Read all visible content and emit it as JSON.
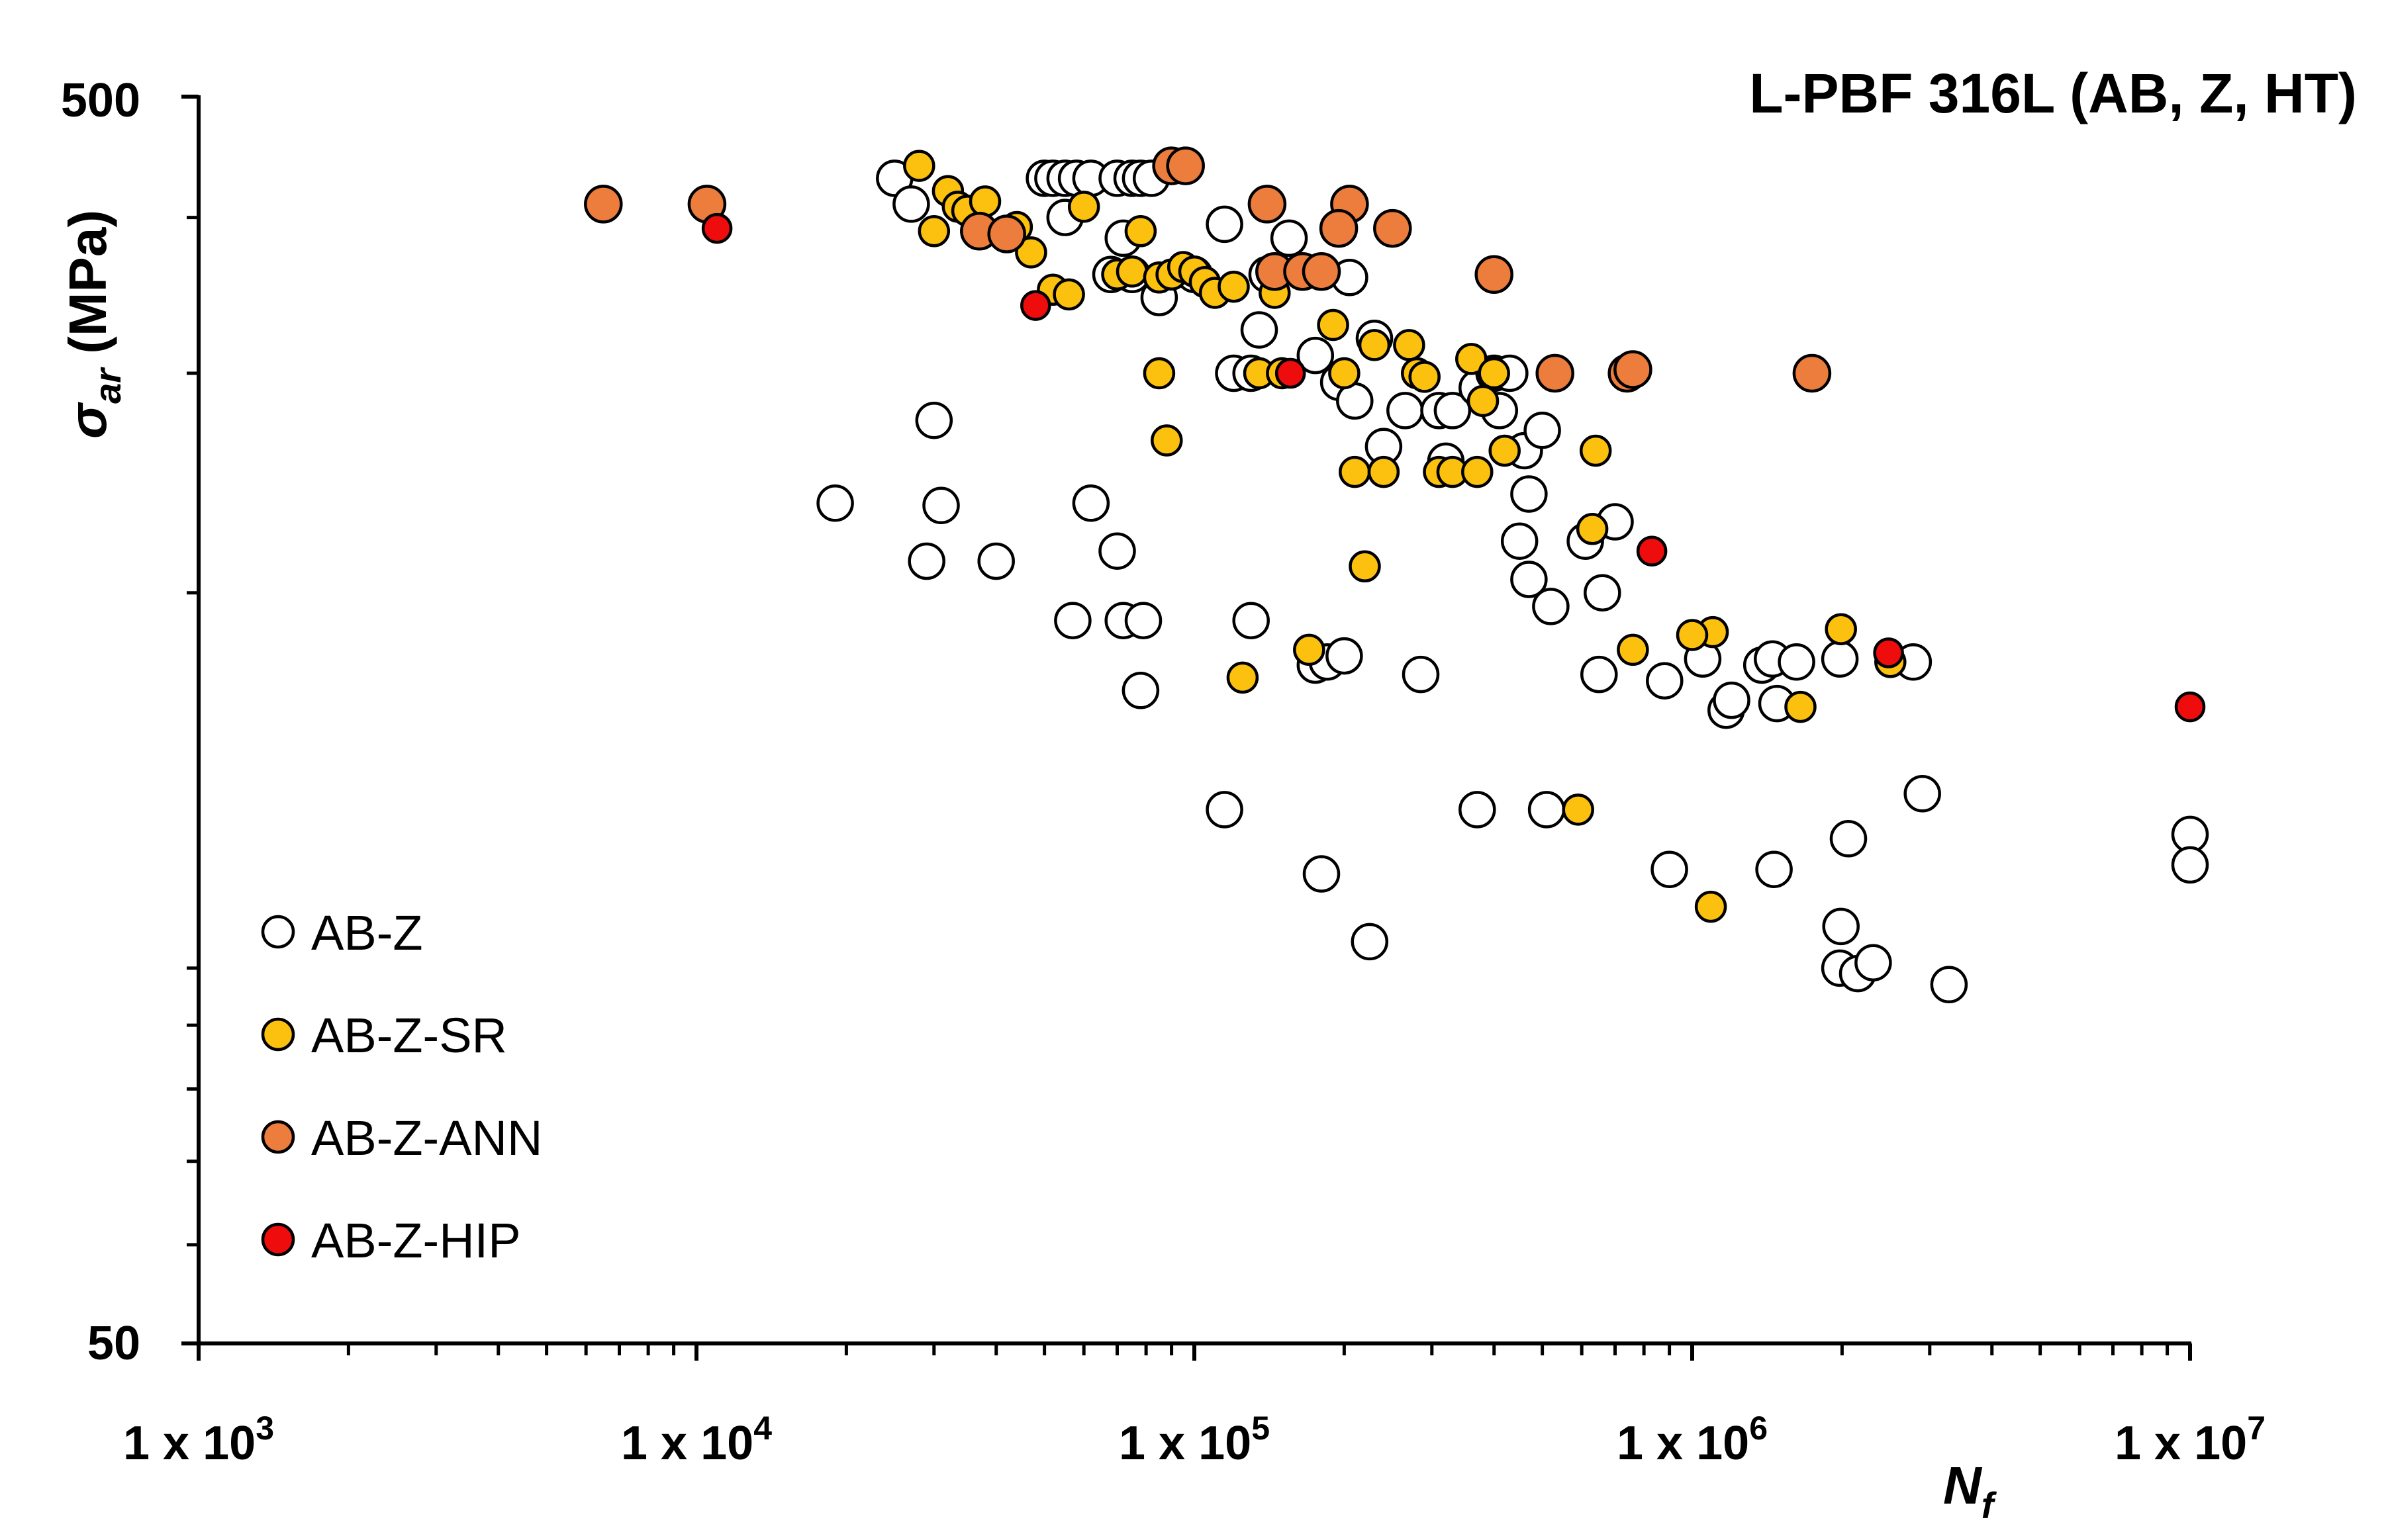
{
  "chart_data": {
    "type": "scatter",
    "title": "L-PBF 316L (AB, Z, HT)",
    "xlabel": "N",
    "xlabel_sub": "f",
    "ylabel": "σ",
    "ylabel_sub": "ar",
    "ylabel_unit": " (MPa)",
    "x_scale": "log",
    "y_scale": "log",
    "xlim": [
      1000,
      10000000
    ],
    "ylim": [
      50,
      500
    ],
    "x_ticks": [
      {
        "value": 1000,
        "base": "1 x 10",
        "exp": "3"
      },
      {
        "value": 10000,
        "base": "1 x 10",
        "exp": "4"
      },
      {
        "value": 100000,
        "base": "1 x 10",
        "exp": "5"
      },
      {
        "value": 1000000,
        "base": "1 x 10",
        "exp": "6"
      },
      {
        "value": 10000000,
        "base": "1 x 10",
        "exp": "7"
      }
    ],
    "y_ticks": [
      {
        "value": 50,
        "label": "50"
      },
      {
        "value": 500,
        "label": "500"
      }
    ],
    "y_minor_ticks": [
      60,
      70,
      80,
      90,
      100,
      200,
      300,
      400
    ],
    "grid": false,
    "legend_position": "bottom-left",
    "series": [
      {
        "name": "AB-Z",
        "fill": "#ffffff",
        "points": [
          [
            25000,
            430
          ],
          [
            27000,
            410
          ],
          [
            30000,
            275
          ],
          [
            31000,
            235
          ],
          [
            19000,
            236
          ],
          [
            29000,
            212
          ],
          [
            40000,
            212
          ],
          [
            50000,
            430
          ],
          [
            52000,
            430
          ],
          [
            55000,
            430
          ],
          [
            58000,
            430
          ],
          [
            62000,
            430
          ],
          [
            70000,
            430
          ],
          [
            75000,
            430
          ],
          [
            78000,
            430
          ],
          [
            82000,
            430
          ],
          [
            55000,
            400
          ],
          [
            72000,
            385
          ],
          [
            68000,
            360
          ],
          [
            75000,
            360
          ],
          [
            85000,
            345
          ],
          [
            100000,
            360
          ],
          [
            115000,
            395
          ],
          [
            135000,
            325
          ],
          [
            155000,
            385
          ],
          [
            140000,
            360
          ],
          [
            205000,
            358
          ],
          [
            175000,
            310
          ],
          [
            195000,
            295
          ],
          [
            210000,
            285
          ],
          [
            230000,
            320
          ],
          [
            240000,
            262
          ],
          [
            265000,
            280
          ],
          [
            310000,
            280
          ],
          [
            320000,
            255
          ],
          [
            330000,
            280
          ],
          [
            370000,
            292
          ],
          [
            400000,
            300
          ],
          [
            430000,
            300
          ],
          [
            410000,
            280
          ],
          [
            460000,
            260
          ],
          [
            470000,
            240
          ],
          [
            500000,
            270
          ],
          [
            450000,
            220
          ],
          [
            470000,
            205
          ],
          [
            520000,
            195
          ],
          [
            610000,
            220
          ],
          [
            700000,
            228
          ],
          [
            660000,
            200
          ],
          [
            120000,
            300
          ],
          [
            130000,
            300
          ],
          [
            62000,
            236
          ],
          [
            70000,
            216
          ],
          [
            57000,
            190
          ],
          [
            72000,
            190
          ],
          [
            79000,
            190
          ],
          [
            130000,
            190
          ],
          [
            175000,
            175
          ],
          [
            185000,
            176
          ],
          [
            200000,
            178
          ],
          [
            78000,
            167
          ],
          [
            285000,
            172
          ],
          [
            115000,
            134
          ],
          [
            370000,
            134
          ],
          [
            510000,
            134
          ],
          [
            650000,
            172
          ],
          [
            880000,
            170
          ],
          [
            1050000,
            177
          ],
          [
            1170000,
            161
          ],
          [
            1200000,
            164
          ],
          [
            1380000,
            175
          ],
          [
            1450000,
            177
          ],
          [
            1480000,
            163
          ],
          [
            1620000,
            176
          ],
          [
            1980000,
            177
          ],
          [
            2780000,
            176
          ],
          [
            2900000,
            138
          ],
          [
            900000,
            120
          ],
          [
            1460000,
            120
          ],
          [
            2060000,
            127
          ],
          [
            1990000,
            108
          ],
          [
            1980000,
            100
          ],
          [
            2150000,
            99
          ],
          [
            2310000,
            101
          ],
          [
            3280000,
            97
          ],
          [
            180000,
            119
          ],
          [
            225000,
            105
          ],
          [
            10000000,
            128
          ],
          [
            10000000,
            121
          ]
        ]
      },
      {
        "name": "AB-Z-SR",
        "fill": "#fcc10f",
        "points": [
          [
            28000,
            440
          ],
          [
            30000,
            390
          ],
          [
            32000,
            420
          ],
          [
            33500,
            408
          ],
          [
            35000,
            405
          ],
          [
            38000,
            412
          ],
          [
            44000,
            393
          ],
          [
            47000,
            375
          ],
          [
            52000,
            350
          ],
          [
            56000,
            347
          ],
          [
            60000,
            408
          ],
          [
            70000,
            360
          ],
          [
            75000,
            362
          ],
          [
            78000,
            390
          ],
          [
            85000,
            358
          ],
          [
            90000,
            360
          ],
          [
            95000,
            365
          ],
          [
            100000,
            362
          ],
          [
            105000,
            355
          ],
          [
            110000,
            348
          ],
          [
            120000,
            352
          ],
          [
            135000,
            300
          ],
          [
            145000,
            348
          ],
          [
            150000,
            300
          ],
          [
            190000,
            328
          ],
          [
            200000,
            300
          ],
          [
            210000,
            250
          ],
          [
            230000,
            316
          ],
          [
            240000,
            250
          ],
          [
            270000,
            316
          ],
          [
            280000,
            300
          ],
          [
            290000,
            298
          ],
          [
            310000,
            250
          ],
          [
            330000,
            250
          ],
          [
            360000,
            308
          ],
          [
            370000,
            250
          ],
          [
            380000,
            285
          ],
          [
            400000,
            300
          ],
          [
            420000,
            260
          ],
          [
            640000,
            260
          ],
          [
            630000,
            225
          ],
          [
            760000,
            180
          ],
          [
            1100000,
            186
          ],
          [
            1000000,
            185
          ],
          [
            1650000,
            162
          ],
          [
            1990000,
            187
          ],
          [
            2500000,
            176
          ],
          [
            590000,
            134
          ],
          [
            1090000,
            112
          ],
          [
            125000,
            171
          ],
          [
            170000,
            180
          ],
          [
            85000,
            300
          ],
          [
            88000,
            265
          ],
          [
            220000,
            210
          ]
        ]
      },
      {
        "name": "AB-Z-ANN",
        "fill": "#ec7d3c",
        "points": [
          [
            6500,
            410
          ],
          [
            10500,
            410
          ],
          [
            37000,
            390
          ],
          [
            42000,
            388
          ],
          [
            90000,
            440
          ],
          [
            96000,
            440
          ],
          [
            140000,
            410
          ],
          [
            205000,
            410
          ],
          [
            250000,
            392
          ],
          [
            195000,
            392
          ],
          [
            145000,
            362
          ],
          [
            165000,
            362
          ],
          [
            180000,
            362
          ],
          [
            400000,
            360
          ],
          [
            530000,
            300
          ],
          [
            740000,
            300
          ],
          [
            760000,
            302
          ],
          [
            1740000,
            300
          ]
        ]
      },
      {
        "name": "AB-Z-HIP",
        "fill": "#ee0c0c",
        "points": [
          [
            11000,
            392
          ],
          [
            48000,
            340
          ],
          [
            156000,
            300
          ],
          [
            830000,
            216
          ],
          [
            2480000,
            179
          ],
          [
            10000000,
            162
          ]
        ]
      }
    ]
  }
}
